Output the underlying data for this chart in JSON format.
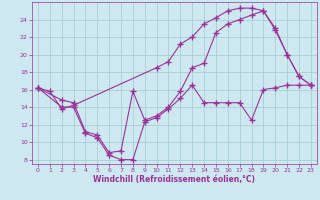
{
  "xlabel": "Windchill (Refroidissement éolien,°C)",
  "bg_color": "#cde8f0",
  "grid_color": "#aacfcf",
  "line_color": "#993399",
  "line1_x": [
    0,
    1,
    2,
    3,
    10,
    11,
    12,
    13,
    14,
    15,
    16,
    17,
    18,
    19,
    20,
    21,
    22,
    23
  ],
  "line1_y": [
    16.2,
    15.8,
    13.8,
    14.2,
    18.5,
    19.2,
    21.2,
    22.0,
    23.5,
    24.2,
    25.0,
    25.3,
    25.3,
    25.0,
    22.8,
    20.0,
    17.5,
    16.5
  ],
  "line2_x": [
    0,
    2,
    3,
    4,
    5,
    6,
    7,
    8,
    9,
    10,
    11,
    12,
    13,
    14,
    15,
    16,
    17,
    18,
    19,
    20,
    21,
    22,
    23
  ],
  "line2_y": [
    16.2,
    14.8,
    14.5,
    11.2,
    10.8,
    8.8,
    9.0,
    15.8,
    12.5,
    13.0,
    14.0,
    15.8,
    18.5,
    19.0,
    22.5,
    23.5,
    24.0,
    24.5,
    25.0,
    23.0,
    20.0,
    17.5,
    16.5
  ],
  "line3_x": [
    0,
    2,
    3,
    4,
    5,
    6,
    7,
    8,
    9,
    10,
    11,
    12,
    13,
    14,
    15,
    16,
    17,
    18,
    19,
    20,
    21,
    22,
    23
  ],
  "line3_y": [
    16.2,
    14.0,
    14.0,
    11.0,
    10.5,
    8.5,
    8.0,
    8.0,
    12.3,
    12.8,
    13.8,
    15.0,
    16.5,
    14.5,
    14.5,
    14.5,
    14.5,
    12.5,
    16.0,
    16.2,
    16.5,
    16.5,
    16.5
  ],
  "xlim": [
    -0.5,
    23.5
  ],
  "ylim": [
    7.5,
    26.0
  ],
  "yticks": [
    8,
    10,
    12,
    14,
    16,
    18,
    20,
    22,
    24
  ],
  "xticks": [
    0,
    1,
    2,
    3,
    4,
    5,
    6,
    7,
    8,
    9,
    10,
    11,
    12,
    13,
    14,
    15,
    16,
    17,
    18,
    19,
    20,
    21,
    22,
    23
  ]
}
